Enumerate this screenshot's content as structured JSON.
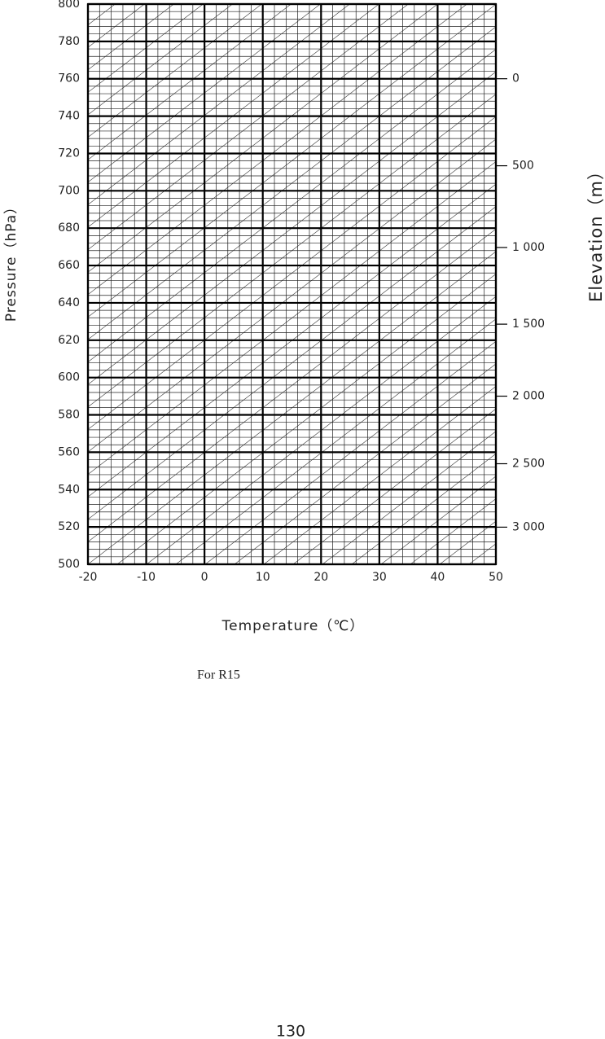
{
  "chart_data": {
    "type": "grid",
    "xlabel": "Temperature（℃）",
    "ylabel": "Pressure（hPa）",
    "y2label": "Elevation（m）",
    "xlim": [
      -20,
      50
    ],
    "xticks": [
      -20,
      -10,
      0,
      10,
      20,
      30,
      40,
      50
    ],
    "ylim": [
      800,
      500
    ],
    "yticks": [
      800,
      780,
      760,
      740,
      720,
      700,
      680,
      660,
      640,
      620,
      600,
      580,
      560,
      540,
      520,
      500
    ],
    "y2lim": [
      -405,
      3308
    ],
    "y2log": true,
    "y2ticks": [
      0,
      500,
      {
        "value": 1000,
        "label": "1 000"
      },
      {
        "value": 1500,
        "label": "1 500"
      },
      {
        "value": 2000,
        "label": "2 000"
      },
      {
        "value": 2500,
        "label": "2 500"
      },
      {
        "value": 3000,
        "label": "3 000"
      }
    ],
    "grid": true
  },
  "caption": "For R15",
  "page_number": "130"
}
